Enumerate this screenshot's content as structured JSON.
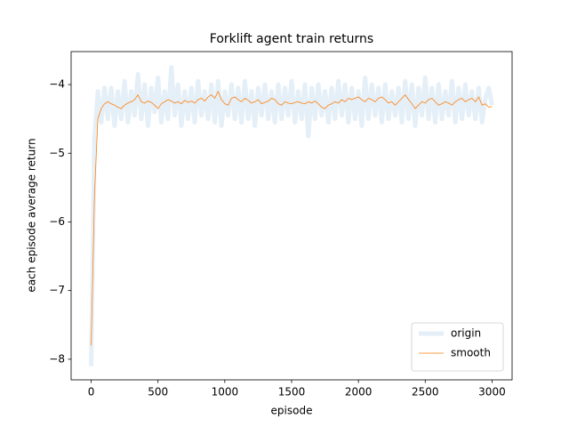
{
  "chart_data": {
    "type": "line",
    "title": "Forklift agent train returns",
    "x_label": "episode",
    "y_label": "each episode average return",
    "x": [
      0,
      25,
      50,
      75,
      100,
      125,
      150,
      175,
      200,
      225,
      250,
      275,
      300,
      325,
      350,
      375,
      400,
      425,
      450,
      475,
      500,
      525,
      550,
      575,
      600,
      625,
      650,
      675,
      700,
      725,
      750,
      775,
      800,
      825,
      850,
      875,
      900,
      925,
      950,
      975,
      1000,
      1025,
      1050,
      1075,
      1100,
      1125,
      1150,
      1175,
      1200,
      1225,
      1250,
      1275,
      1300,
      1325,
      1350,
      1375,
      1400,
      1425,
      1450,
      1475,
      1500,
      1525,
      1550,
      1575,
      1600,
      1625,
      1650,
      1675,
      1700,
      1725,
      1750,
      1775,
      1800,
      1825,
      1850,
      1875,
      1900,
      1925,
      1950,
      1975,
      2000,
      2025,
      2050,
      2075,
      2100,
      2125,
      2150,
      2175,
      2200,
      2225,
      2250,
      2275,
      2300,
      2325,
      2350,
      2375,
      2400,
      2425,
      2450,
      2475,
      2500,
      2525,
      2550,
      2575,
      2600,
      2625,
      2650,
      2675,
      2700,
      2725,
      2750,
      2775,
      2800,
      2825,
      2850,
      2875,
      2900,
      2925,
      2950,
      2975,
      3000
    ],
    "series": [
      {
        "name": "origin",
        "color": "#e5eff7",
        "values": [
          -8.1,
          -4.8,
          -4.1,
          -4.55,
          -4.05,
          -4.5,
          -4.05,
          -4.6,
          -4.1,
          -4.5,
          -3.95,
          -4.55,
          -4.1,
          -4.45,
          -3.85,
          -4.5,
          -4.0,
          -4.6,
          -4.05,
          -4.4,
          -3.9,
          -4.55,
          -4.1,
          -4.5,
          -3.75,
          -4.45,
          -4.0,
          -4.6,
          -4.1,
          -4.5,
          -4.05,
          -4.55,
          -3.95,
          -4.45,
          -4.1,
          -4.5,
          -4.0,
          -4.55,
          -3.95,
          -4.6,
          -4.1,
          -4.45,
          -4.0,
          -4.5,
          -4.05,
          -4.55,
          -3.95,
          -4.5,
          -4.1,
          -4.6,
          -4.05,
          -4.45,
          -4.0,
          -4.5,
          -4.1,
          -4.55,
          -4.0,
          -4.5,
          -4.05,
          -4.45,
          -3.95,
          -4.55,
          -4.1,
          -4.5,
          -4.0,
          -4.75,
          -4.05,
          -4.5,
          -4.0,
          -4.45,
          -4.1,
          -4.55,
          -4.05,
          -4.5,
          -3.95,
          -4.45,
          -4.0,
          -4.55,
          -4.05,
          -4.5,
          -4.1,
          -4.6,
          -3.9,
          -4.5,
          -4.0,
          -4.45,
          -4.05,
          -4.55,
          -4.0,
          -4.5,
          -4.1,
          -4.45,
          -4.05,
          -4.55,
          -3.95,
          -4.5,
          -4.0,
          -4.6,
          -4.05,
          -4.45,
          -3.9,
          -4.5,
          -4.05,
          -4.55,
          -4.0,
          -4.5,
          -4.1,
          -4.45,
          -3.95,
          -4.55,
          -4.05,
          -4.5,
          -4.0,
          -4.45,
          -4.1,
          -4.5,
          -4.05,
          -4.55,
          -4.2,
          -4.05,
          -4.3
        ]
      },
      {
        "name": "smooth",
        "color": "#ff7f0e",
        "values": [
          -7.8,
          -5.6,
          -4.5,
          -4.35,
          -4.28,
          -4.25,
          -4.28,
          -4.3,
          -4.33,
          -4.35,
          -4.3,
          -4.27,
          -4.25,
          -4.22,
          -4.15,
          -4.25,
          -4.27,
          -4.24,
          -4.26,
          -4.3,
          -4.35,
          -4.28,
          -4.25,
          -4.22,
          -4.24,
          -4.27,
          -4.25,
          -4.28,
          -4.23,
          -4.26,
          -4.24,
          -4.27,
          -4.22,
          -4.2,
          -4.24,
          -4.18,
          -4.15,
          -4.2,
          -4.1,
          -4.22,
          -4.28,
          -4.3,
          -4.2,
          -4.18,
          -4.22,
          -4.25,
          -4.2,
          -4.23,
          -4.27,
          -4.25,
          -4.22,
          -4.28,
          -4.26,
          -4.24,
          -4.2,
          -4.22,
          -4.28,
          -4.3,
          -4.25,
          -4.27,
          -4.28,
          -4.26,
          -4.25,
          -4.27,
          -4.28,
          -4.25,
          -4.27,
          -4.24,
          -4.28,
          -4.33,
          -4.35,
          -4.3,
          -4.28,
          -4.25,
          -4.27,
          -4.22,
          -4.25,
          -4.2,
          -4.22,
          -4.2,
          -4.18,
          -4.22,
          -4.25,
          -4.2,
          -4.22,
          -4.25,
          -4.2,
          -4.18,
          -4.22,
          -4.27,
          -4.25,
          -4.3,
          -4.25,
          -4.2,
          -4.15,
          -4.22,
          -4.28,
          -4.35,
          -4.3,
          -4.25,
          -4.27,
          -4.22,
          -4.2,
          -4.25,
          -4.3,
          -4.28,
          -4.25,
          -4.27,
          -4.3,
          -4.25,
          -4.22,
          -4.2,
          -4.25,
          -4.22,
          -4.2,
          -4.25,
          -4.18,
          -4.3,
          -4.28,
          -4.33,
          -4.32
        ]
      }
    ],
    "xlim": [
      -150,
      3150
    ],
    "ylim": [
      -8.3,
      -3.52
    ],
    "xticks": [
      0,
      500,
      1000,
      1500,
      2000,
      2500,
      3000
    ],
    "yticks": [
      {
        "value": -8,
        "label": "−8"
      },
      {
        "value": -7,
        "label": "−7"
      },
      {
        "value": -6,
        "label": "−6"
      },
      {
        "value": -5,
        "label": "−5"
      },
      {
        "value": -4,
        "label": "−4"
      }
    ],
    "legend": "lower right"
  }
}
